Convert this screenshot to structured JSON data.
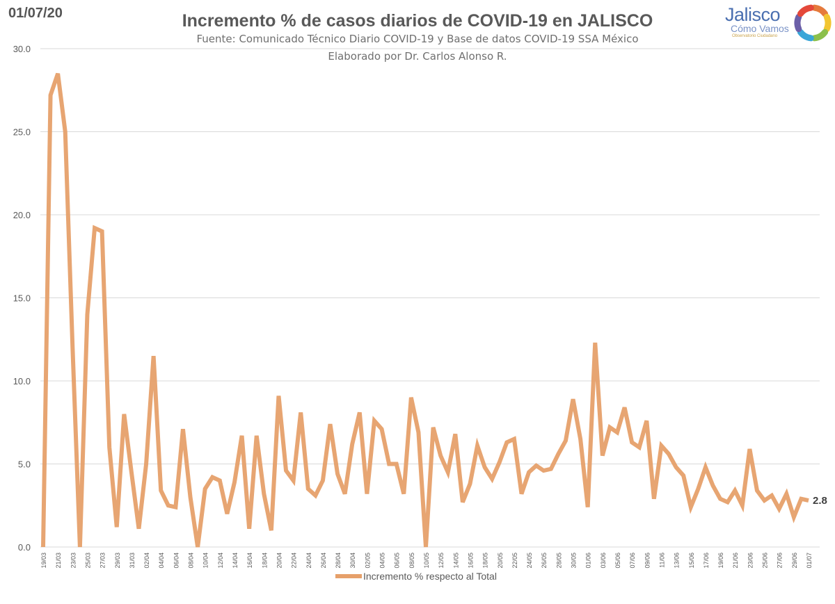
{
  "header": {
    "date": "01/07/20",
    "title": "Incremento % de casos diarios de COVID-19 en JALISCO",
    "subtitle": "Fuente: Comunicado Técnico Diario COVID-19 y Base de datos COVID-19 SSA México",
    "subtitle2": "Elaborado por Dr. Carlos Alonso R."
  },
  "logo": {
    "word": "Jalisco",
    "sub": "Cómo Vamos",
    "tag": "Observatorio Ciudadano",
    "colors": [
      "#e57a3c",
      "#f2c531",
      "#8cc04b",
      "#3aa6d8",
      "#6b5fa8",
      "#e4483a"
    ]
  },
  "chart_data": {
    "type": "line",
    "xlabel": "",
    "ylabel": "",
    "ylim": [
      0,
      30
    ],
    "yticks": [
      "0.0",
      "5.0",
      "10.0",
      "15.0",
      "20.0",
      "25.0",
      "30.0"
    ],
    "grid": true,
    "legend_position": "bottom",
    "line_color": "#e6a06a",
    "tick_labels": [
      "19/03",
      "21/03",
      "23/03",
      "25/03",
      "27/03",
      "29/03",
      "31/03",
      "02/04",
      "04/04",
      "06/04",
      "08/04",
      "10/04",
      "12/04",
      "14/04",
      "16/04",
      "18/04",
      "20/04",
      "22/04",
      "24/04",
      "26/04",
      "28/04",
      "30/04",
      "02/05",
      "04/05",
      "06/05",
      "08/05",
      "10/05",
      "12/05",
      "14/05",
      "16/05",
      "18/05",
      "20/05",
      "22/05",
      "24/05",
      "26/05",
      "28/05",
      "30/05",
      "01/06",
      "03/06",
      "05/06",
      "07/06",
      "09/06",
      "11/06",
      "13/06",
      "15/06",
      "17/06",
      "19/06",
      "21/06",
      "23/06",
      "25/06",
      "27/06",
      "29/06",
      "01/07"
    ],
    "series": [
      {
        "name": "Incremento % respecto al Total",
        "values": [
          0.0,
          27.2,
          28.5,
          25.0,
          12.0,
          0.0,
          14.0,
          19.2,
          19.0,
          6.0,
          1.2,
          8.0,
          4.5,
          1.1,
          5.0,
          11.5,
          3.4,
          2.5,
          2.4,
          7.1,
          3.0,
          0.0,
          3.5,
          4.2,
          4.0,
          2.0,
          3.9,
          6.7,
          1.1,
          6.7,
          3.2,
          1.0,
          9.1,
          4.6,
          4.0,
          8.1,
          3.5,
          3.1,
          4.0,
          7.4,
          4.4,
          3.2,
          6.2,
          8.1,
          3.2,
          7.6,
          7.1,
          5.0,
          5.0,
          3.2,
          9.0,
          6.9,
          0.0,
          7.2,
          5.5,
          4.5,
          6.8,
          2.7,
          3.8,
          6.1,
          4.8,
          4.1,
          5.1,
          6.3,
          6.5,
          3.2,
          4.5,
          4.9,
          4.6,
          4.7,
          5.6,
          6.4,
          8.9,
          6.5,
          2.4,
          12.3,
          5.5,
          7.2,
          6.9,
          8.4,
          6.3,
          6.0,
          7.6,
          2.9,
          6.1,
          5.6,
          4.8,
          4.3,
          2.4,
          3.5,
          4.8,
          3.7,
          2.9,
          2.7,
          3.4,
          2.5,
          5.9,
          3.4,
          2.8,
          3.1,
          2.3,
          3.2,
          1.8,
          2.9,
          2.8
        ],
        "last_label": "2.8"
      }
    ]
  }
}
